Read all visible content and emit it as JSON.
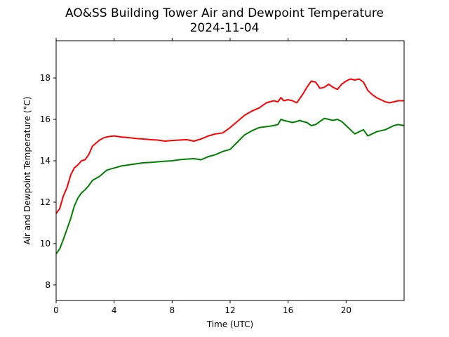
{
  "chart_data": {
    "type": "line",
    "title": "AO&SS Building Tower Air and Dewpoint Temperature",
    "subtitle": "2024-11-04",
    "xlabel": "Time (UTC)",
    "ylabel": "Air and Dewpoint Temperature (°C)",
    "xlim": [
      0,
      24
    ],
    "ylim": [
      7.25,
      19.8
    ],
    "xticks": [
      0,
      4,
      8,
      12,
      16,
      20
    ],
    "yticks": [
      8,
      10,
      12,
      14,
      16,
      18
    ],
    "grid": false,
    "legend": "none",
    "series": [
      {
        "color": "#ff0000",
        "x": [
          0,
          0.25,
          0.5,
          0.75,
          1,
          1.25,
          1.5,
          1.75,
          2,
          2.25,
          2.5,
          2.75,
          3,
          3.25,
          3.5,
          3.75,
          4,
          4.5,
          5,
          5.5,
          6,
          6.5,
          7,
          7.5,
          8,
          8.5,
          9,
          9.5,
          10,
          10.5,
          11,
          11.5,
          12,
          12.5,
          13,
          13.5,
          14,
          14.5,
          15,
          15.3,
          15.5,
          15.7,
          16,
          16.3,
          16.6,
          16.8,
          17,
          17.3,
          17.6,
          17.9,
          18.2,
          18.5,
          18.8,
          19.1,
          19.4,
          19.7,
          20,
          20.3,
          20.6,
          20.9,
          21.2,
          21.5,
          21.8,
          22.1,
          22.4,
          22.7,
          23,
          23.3,
          23.6,
          24
        ],
        "y": [
          11.45,
          11.7,
          12.3,
          12.7,
          13.3,
          13.65,
          13.8,
          14.0,
          14.05,
          14.3,
          14.7,
          14.85,
          15.0,
          15.1,
          15.15,
          15.18,
          15.2,
          15.15,
          15.12,
          15.08,
          15.05,
          15.02,
          15.0,
          14.95,
          14.98,
          15.0,
          15.02,
          14.95,
          15.05,
          15.2,
          15.3,
          15.35,
          15.6,
          15.9,
          16.2,
          16.4,
          16.55,
          16.8,
          16.9,
          16.85,
          17.05,
          16.9,
          16.95,
          16.9,
          16.8,
          17.0,
          17.2,
          17.55,
          17.85,
          17.8,
          17.5,
          17.55,
          17.7,
          17.55,
          17.45,
          17.7,
          17.85,
          17.95,
          17.9,
          17.95,
          17.8,
          17.4,
          17.2,
          17.05,
          16.95,
          16.85,
          16.8,
          16.85,
          16.9,
          16.9
        ]
      },
      {
        "color": "#008000",
        "x": [
          0,
          0.25,
          0.5,
          0.75,
          1,
          1.25,
          1.5,
          1.75,
          2,
          2.25,
          2.5,
          2.75,
          3,
          3.25,
          3.5,
          3.75,
          4,
          4.5,
          5,
          5.5,
          6,
          6.5,
          7,
          7.5,
          8,
          8.5,
          9,
          9.5,
          10,
          10.5,
          11,
          11.5,
          12,
          12.5,
          13,
          13.5,
          14,
          14.5,
          15,
          15.3,
          15.5,
          15.7,
          16,
          16.3,
          16.6,
          16.8,
          17,
          17.3,
          17.6,
          17.9,
          18.2,
          18.5,
          18.8,
          19.1,
          19.4,
          19.7,
          20,
          20.3,
          20.6,
          20.9,
          21.2,
          21.5,
          21.8,
          22.1,
          22.4,
          22.7,
          23,
          23.3,
          23.6,
          24
        ],
        "y": [
          9.5,
          9.75,
          10.2,
          10.7,
          11.2,
          11.8,
          12.2,
          12.45,
          12.6,
          12.8,
          13.05,
          13.15,
          13.25,
          13.4,
          13.55,
          13.6,
          13.65,
          13.75,
          13.8,
          13.85,
          13.9,
          13.92,
          13.95,
          13.98,
          14.0,
          14.05,
          14.08,
          14.1,
          14.05,
          14.2,
          14.3,
          14.45,
          14.55,
          14.9,
          15.25,
          15.45,
          15.6,
          15.65,
          15.7,
          15.75,
          16.0,
          15.95,
          15.9,
          15.85,
          15.9,
          15.95,
          15.9,
          15.85,
          15.7,
          15.75,
          15.9,
          16.05,
          16.0,
          15.95,
          16.0,
          15.9,
          15.7,
          15.5,
          15.3,
          15.4,
          15.5,
          15.2,
          15.3,
          15.4,
          15.45,
          15.5,
          15.6,
          15.7,
          15.75,
          15.7
        ]
      }
    ]
  }
}
